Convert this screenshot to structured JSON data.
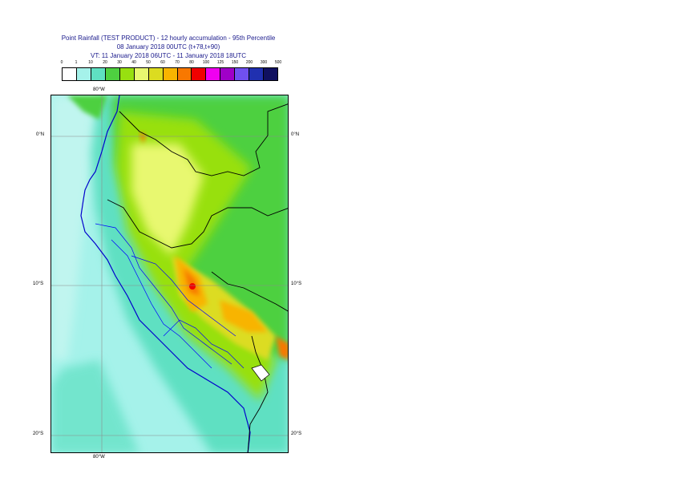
{
  "title": {
    "line1": "Point Rainfall (TEST PRODUCT) - 12 hourly accumulation - 95th Percentile",
    "line2": "08 January 2018 00UTC (t+78,t+90)",
    "line3": "VT: 11 January 2018 06UTC - 11 January 2018 18UTC"
  },
  "legend": {
    "ticks": [
      "0",
      "1",
      "10",
      "20",
      "30",
      "40",
      "50",
      "60",
      "70",
      "80",
      "100",
      "125",
      "150",
      "200",
      "300",
      "500"
    ],
    "colors": [
      "#ffffff",
      "#a5f2ea",
      "#5fe0c2",
      "#4ed040",
      "#98e010",
      "#e8f870",
      "#dcdc20",
      "#f8b400",
      "#f87800",
      "#f00000",
      "#f000f0",
      "#a000c8",
      "#7050f0",
      "#2030b0",
      "#101060"
    ]
  },
  "map": {
    "lon_labels": {
      "top": "80°W",
      "bottom": "80°W"
    },
    "lat_labels": {
      "n0_left": "0°N",
      "n0_right": "0°N",
      "s10_left": "10°S",
      "s10_right": "10°S",
      "s20_left": "20°S",
      "s20_right": "20°S"
    },
    "colors": {
      "border": "#000000",
      "regions": "#0000ff",
      "grid": "#8c8c8c"
    }
  }
}
